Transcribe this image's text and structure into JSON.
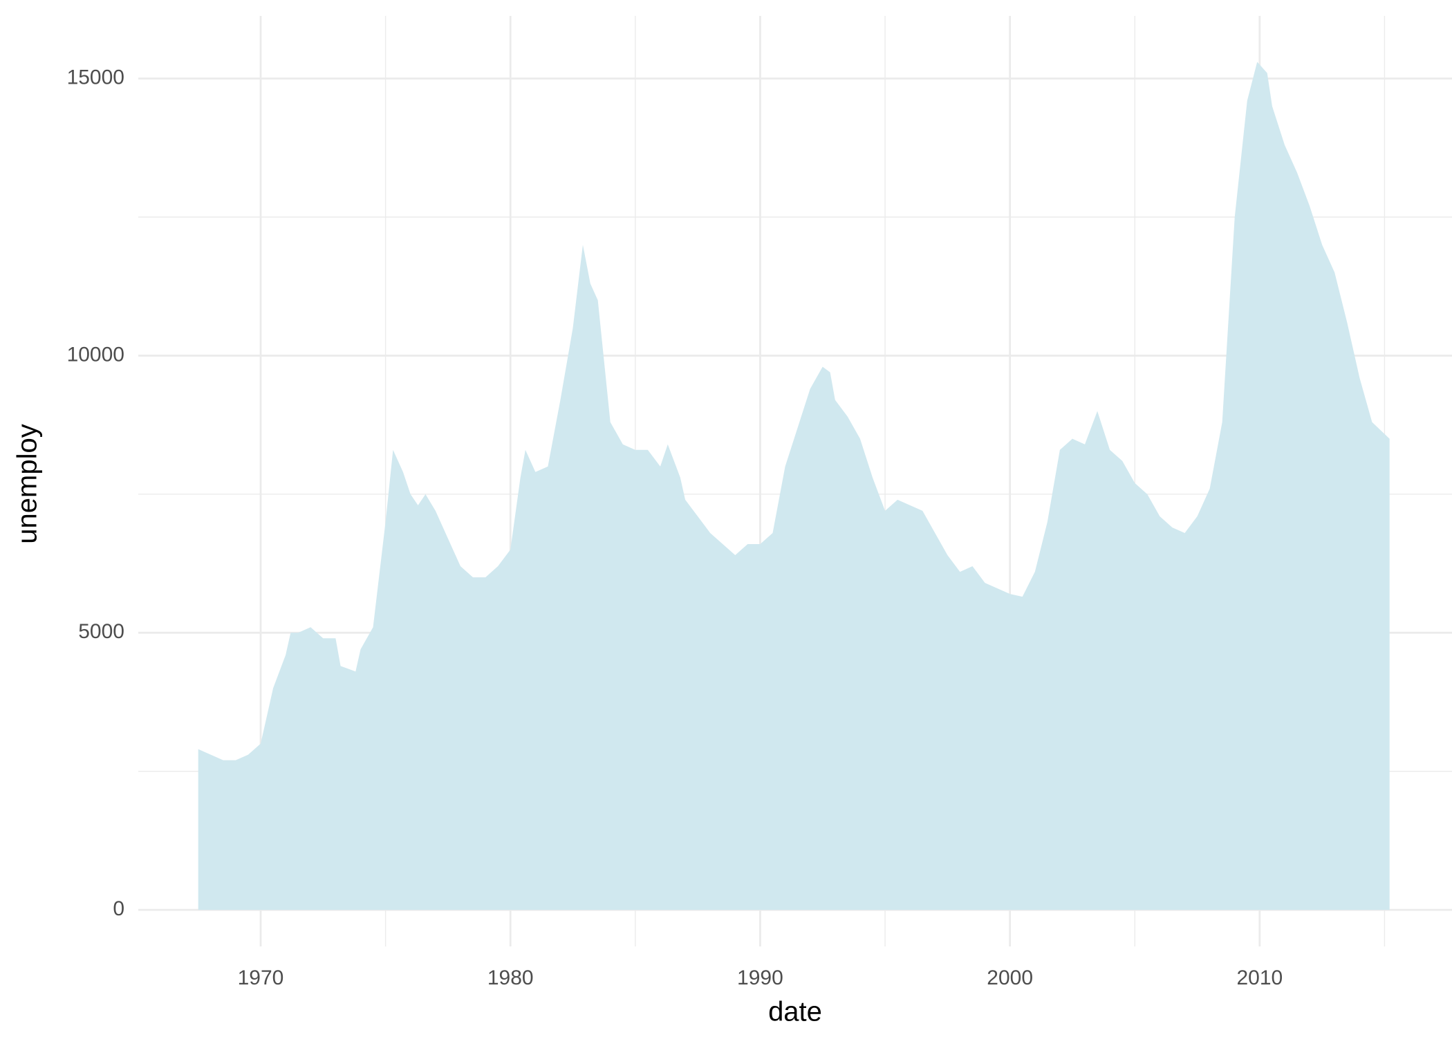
{
  "chart_data": {
    "type": "area",
    "x_label": "date",
    "y_label": "unemploy",
    "x": [
      1967.5,
      1968,
      1968.5,
      1969,
      1969.5,
      1970,
      1970.5,
      1971,
      1971.2,
      1971.5,
      1972,
      1972.5,
      1973,
      1973.2,
      1973.8,
      1974,
      1974.5,
      1975,
      1975.3,
      1975.7,
      1976,
      1976.3,
      1976.6,
      1977,
      1977.5,
      1978,
      1978.5,
      1979,
      1979.5,
      1980,
      1980.4,
      1980.6,
      1981,
      1981.5,
      1982,
      1982.5,
      1982.9,
      1983.2,
      1983.5,
      1984,
      1984.5,
      1985,
      1985.5,
      1986,
      1986.3,
      1986.8,
      1987,
      1987.5,
      1988,
      1988.5,
      1989,
      1989.5,
      1990,
      1990.5,
      1991,
      1991.5,
      1992,
      1992.5,
      1992.8,
      1993,
      1993.5,
      1994,
      1994.5,
      1995,
      1995.5,
      1996,
      1996.5,
      1997,
      1997.5,
      1998,
      1998.5,
      1999,
      1999.5,
      2000,
      2000.5,
      2001,
      2001.5,
      2002,
      2002.5,
      2003,
      2003.5,
      2004,
      2004.5,
      2005,
      2005.5,
      2006,
      2006.5,
      2007,
      2007.5,
      2008,
      2008.5,
      2009,
      2009.5,
      2009.9,
      2010.3,
      2010.5,
      2011,
      2011.5,
      2012,
      2012.5,
      2013,
      2013.5,
      2014,
      2014.5,
      2015.2
    ],
    "values": [
      2900,
      2800,
      2700,
      2700,
      2800,
      3000,
      4000,
      4600,
      5000,
      5000,
      5100,
      4900,
      4900,
      4400,
      4300,
      4700,
      5100,
      7000,
      8300,
      7900,
      7500,
      7300,
      7500,
      7200,
      6700,
      6200,
      6000,
      6000,
      6200,
      6500,
      7800,
      8300,
      7900,
      8000,
      9200,
      10500,
      12000,
      11300,
      11000,
      8800,
      8400,
      8300,
      8300,
      8000,
      8400,
      7800,
      7400,
      7100,
      6800,
      6600,
      6400,
      6600,
      6600,
      6800,
      8000,
      8700,
      9400,
      9800,
      9700,
      9200,
      8900,
      8500,
      7800,
      7200,
      7400,
      7300,
      7200,
      6800,
      6400,
      6100,
      6200,
      5900,
      5800,
      5700,
      5650,
      6100,
      7000,
      8300,
      8500,
      8400,
      9000,
      8300,
      8100,
      7700,
      7500,
      7100,
      6900,
      6800,
      7100,
      7600,
      8800,
      12500,
      14600,
      15300,
      15100,
      14500,
      13800,
      13300,
      12700,
      12000,
      11500,
      10600,
      9600,
      8800,
      8500
    ],
    "color": "#d0e8ef",
    "xlim": [
      1965.1,
      2017.7
    ],
    "xticks": [
      1970,
      1980,
      1990,
      2000,
      2010
    ],
    "xminor": [
      1975,
      1985,
      1995,
      2005,
      2015
    ],
    "ylim": [
      -660,
      16130
    ],
    "yticks": [
      0,
      5000,
      10000,
      15000
    ],
    "yminor": [
      2500,
      7500,
      12500
    ],
    "grid": true
  }
}
